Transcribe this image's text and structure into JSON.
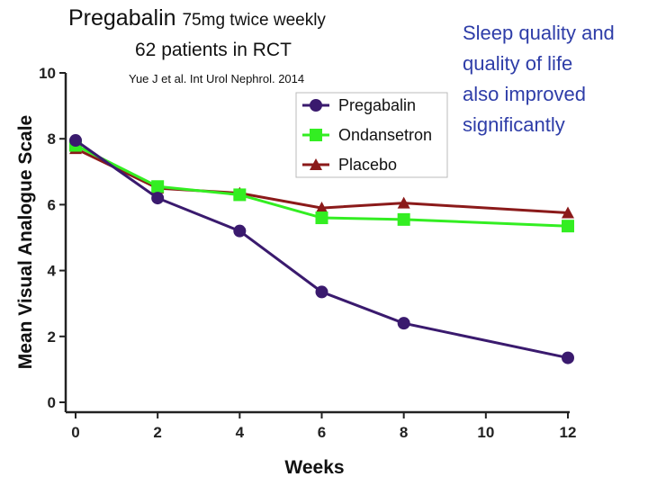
{
  "slide": {
    "title_main": "Pregabalin",
    "title_dose": "75mg twice weekly",
    "subtitle": "62 patients in RCT",
    "citation": "Yue J et al. Int Urol Nephrol. 2014",
    "note_lines": [
      "Sleep quality and",
      "quality of life",
      "also improved",
      "significantly"
    ]
  },
  "chart_data": {
    "type": "line",
    "title": "",
    "xlabel": "Weeks",
    "ylabel": "Mean Visual Analogue Scale",
    "xlim": [
      0,
      12
    ],
    "ylim": [
      0,
      10
    ],
    "x_ticks": [
      0,
      2,
      4,
      6,
      8,
      10,
      12
    ],
    "y_ticks": [
      0,
      2,
      4,
      6,
      8,
      10
    ],
    "grid": false,
    "legend_position": "top-right",
    "series": [
      {
        "name": "Pregabalin",
        "color": "#3a1a6e",
        "marker": "circle",
        "x": [
          0,
          2,
          4,
          6,
          8,
          12
        ],
        "values": [
          7.95,
          6.2,
          5.2,
          3.35,
          2.4,
          1.35
        ]
      },
      {
        "name": "Ondansetron",
        "color": "#33ee22",
        "marker": "square",
        "x": [
          0,
          2,
          4,
          6,
          8,
          12
        ],
        "values": [
          7.8,
          6.55,
          6.3,
          5.6,
          5.55,
          5.35
        ]
      },
      {
        "name": "Placebo",
        "color": "#8b1a1a",
        "marker": "triangle",
        "x": [
          0,
          2,
          4,
          6,
          8,
          12
        ],
        "values": [
          7.7,
          6.5,
          6.35,
          5.9,
          6.05,
          5.75
        ]
      }
    ]
  }
}
